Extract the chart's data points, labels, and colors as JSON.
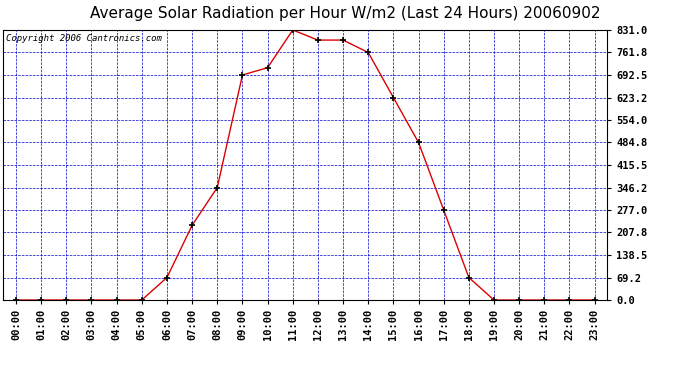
{
  "title": "Average Solar Radiation per Hour W/m2 (Last 24 Hours) 20060902",
  "copyright": "Copyright 2006 Cantronics.com",
  "hours": [
    "00:00",
    "01:00",
    "02:00",
    "03:00",
    "04:00",
    "05:00",
    "06:00",
    "07:00",
    "08:00",
    "09:00",
    "10:00",
    "11:00",
    "12:00",
    "13:00",
    "14:00",
    "15:00",
    "16:00",
    "17:00",
    "18:00",
    "19:00",
    "20:00",
    "21:00",
    "22:00",
    "23:00"
  ],
  "values": [
    0.0,
    0.0,
    0.0,
    0.0,
    0.0,
    0.0,
    69.2,
    230.0,
    346.2,
    692.5,
    715.0,
    831.0,
    800.0,
    800.0,
    761.8,
    623.2,
    484.8,
    277.0,
    69.2,
    0.0,
    0.0,
    0.0,
    0.0,
    0.0
  ],
  "yticks": [
    0.0,
    69.2,
    138.5,
    207.8,
    277.0,
    346.2,
    415.5,
    484.8,
    554.0,
    623.2,
    692.5,
    761.8,
    831.0
  ],
  "line_color": "#dd0000",
  "marker_color": "#000000",
  "bg_color": "#ffffff",
  "plot_bg": "#ffffff",
  "grid_color": "#0000cc",
  "title_fontsize": 11,
  "copyright_fontsize": 6.5,
  "tick_fontsize": 7.5,
  "ymax": 831.0
}
